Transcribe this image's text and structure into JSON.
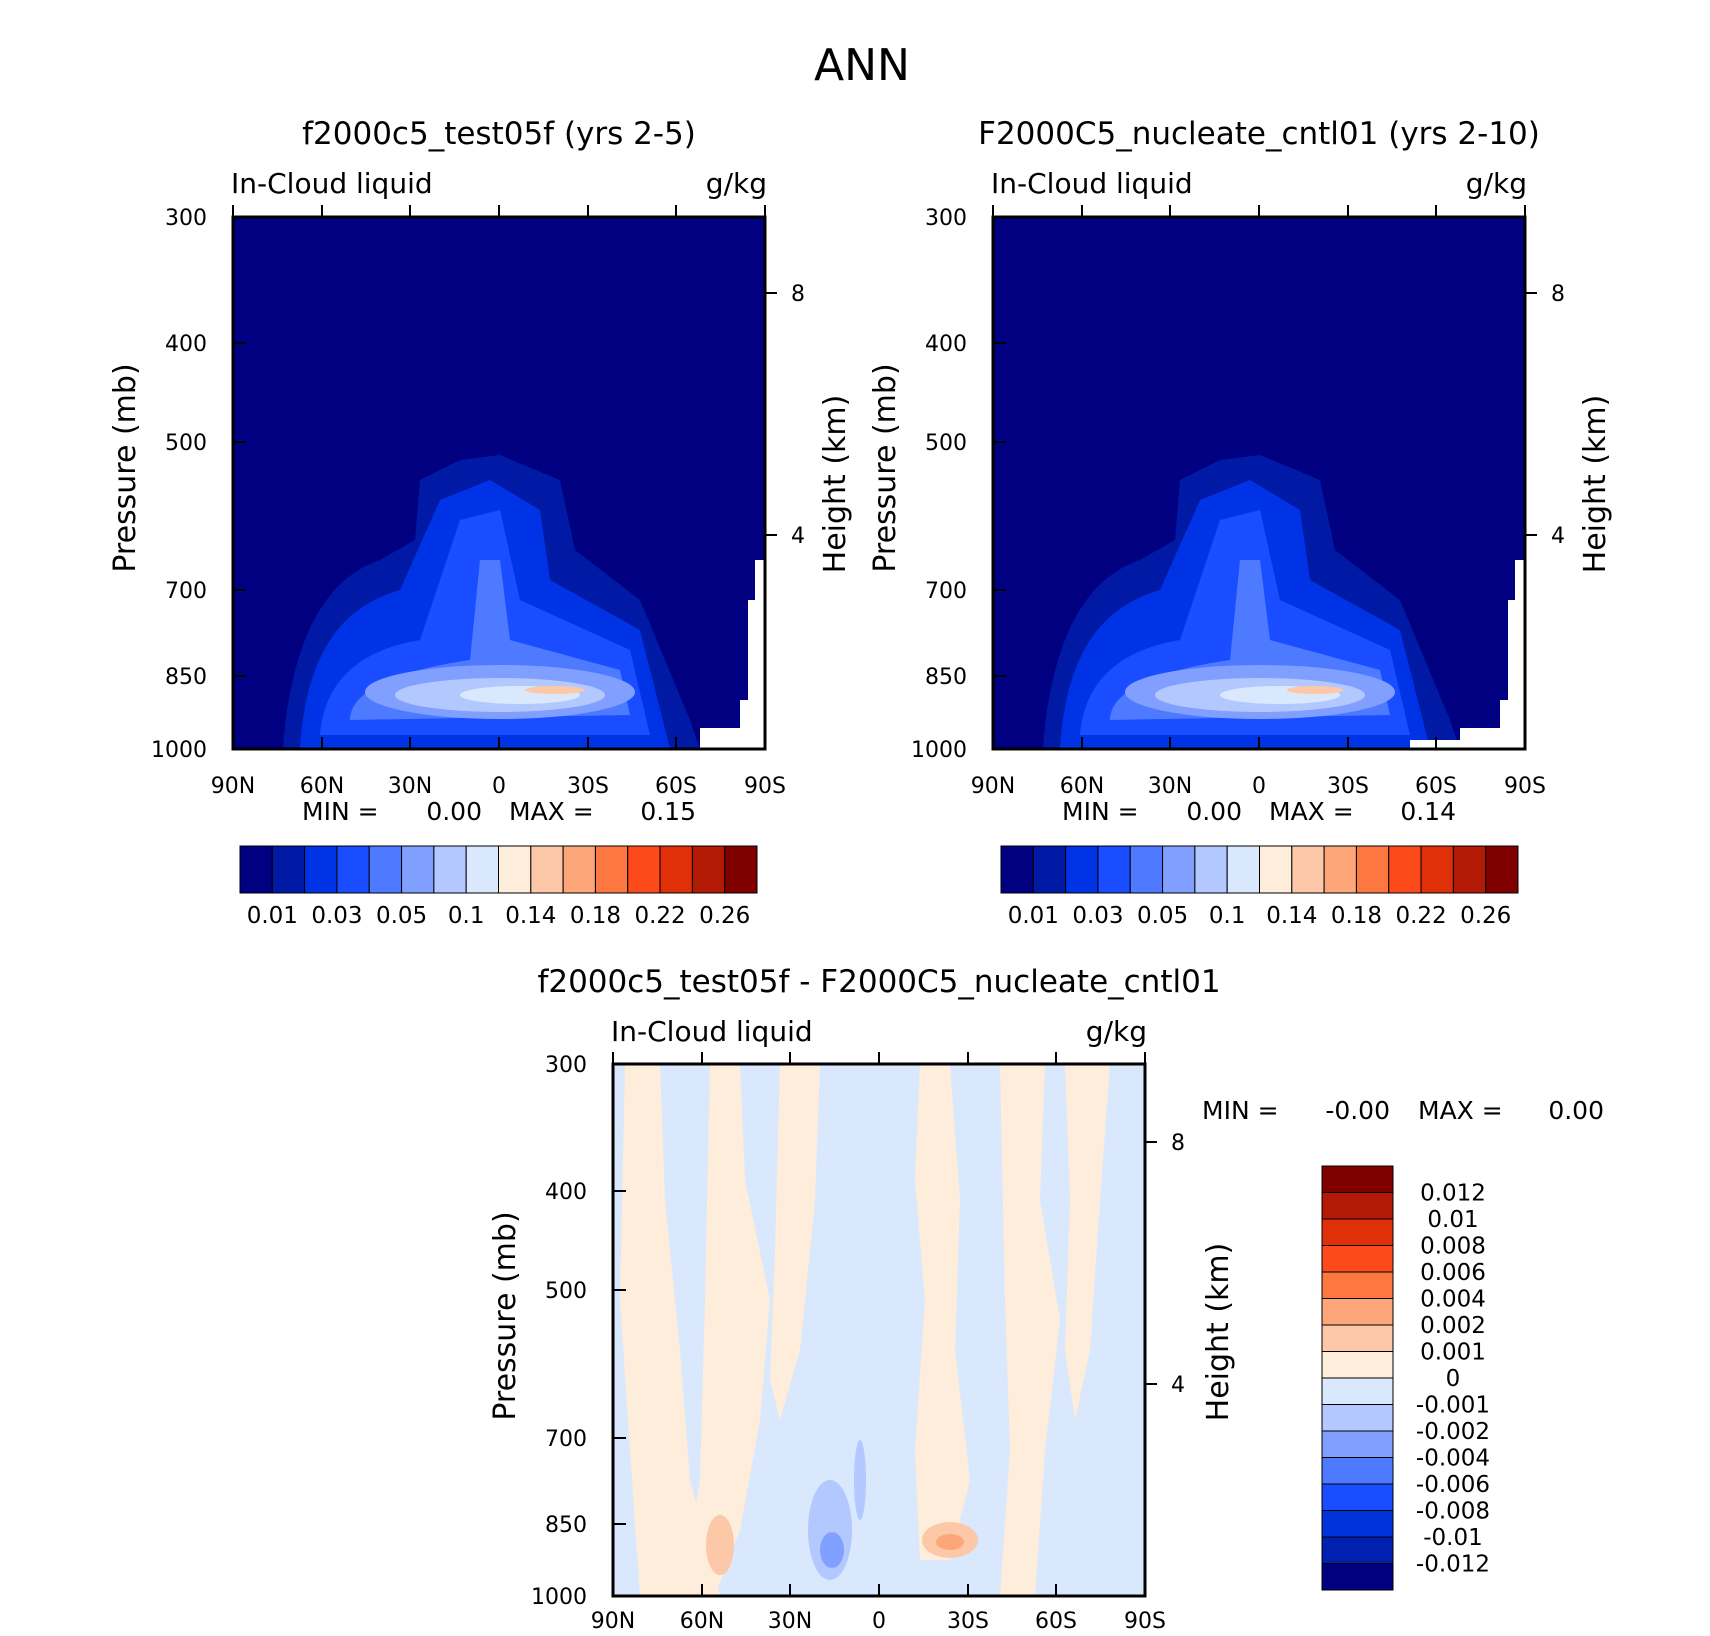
{
  "page_title": "ANN",
  "colors": {
    "abs_scale": [
      "#000080",
      "#001aa6",
      "#0033e6",
      "#1a4dff",
      "#4d7aff",
      "#809fff",
      "#b3c8ff",
      "#d9e8fc",
      "#ffeddb",
      "#fcc8a8",
      "#fca67a",
      "#fc7840",
      "#fc4a1a",
      "#e0300a",
      "#b31a05",
      "#800000"
    ],
    "diff_scale": [
      "#000080",
      "#0020b0",
      "#0033d9",
      "#1a4dff",
      "#4d7aff",
      "#809fff",
      "#b3c8ff",
      "#d9e8fc",
      "#ffeddb",
      "#fcc8a8",
      "#fca67a",
      "#fc7840",
      "#fc4a1a",
      "#e0300a",
      "#b31a05",
      "#800000"
    ]
  },
  "chart_data": [
    {
      "type": "heatmap",
      "title": "f2000c5_test05f (yrs 2-5)",
      "variable_label": "In-Cloud liquid",
      "units_label": "g/kg",
      "ylabel": "Pressure (mb)",
      "ylabel_right": "Height (km)",
      "x_ticks": [
        "90N",
        "60N",
        "30N",
        "0",
        "30S",
        "60S",
        "90S"
      ],
      "y_ticks": [
        "300",
        "400",
        "500",
        "700",
        "850",
        "1000"
      ],
      "y_right_ticks": [
        "8",
        "4"
      ],
      "ylim": [
        1000,
        300
      ],
      "min_label": "MIN =",
      "min_value": "0.00",
      "max_label": "MAX =",
      "max_value": "0.15",
      "colorbar_labels": [
        "0.01",
        "0.03",
        "0.05",
        "0.1",
        "0.14",
        "0.18",
        "0.22",
        "0.26"
      ]
    },
    {
      "type": "heatmap",
      "title": "F2000C5_nucleate_cntl01 (yrs 2-10)",
      "variable_label": "In-Cloud liquid",
      "units_label": "g/kg",
      "ylabel": "Pressure (mb)",
      "ylabel_right": "Height (km)",
      "x_ticks": [
        "90N",
        "60N",
        "30N",
        "0",
        "30S",
        "60S",
        "90S"
      ],
      "y_ticks": [
        "300",
        "400",
        "500",
        "700",
        "850",
        "1000"
      ],
      "y_right_ticks": [
        "8",
        "4"
      ],
      "ylim": [
        1000,
        300
      ],
      "min_label": "MIN =",
      "min_value": "0.00",
      "max_label": "MAX =",
      "max_value": "0.14",
      "colorbar_labels": [
        "0.01",
        "0.03",
        "0.05",
        "0.1",
        "0.14",
        "0.18",
        "0.22",
        "0.26"
      ]
    },
    {
      "type": "heatmap",
      "title": "f2000c5_test05f - F2000C5_nucleate_cntl01",
      "variable_label": "In-Cloud liquid",
      "units_label": "g/kg",
      "ylabel": "Pressure (mb)",
      "ylabel_right": "Height (km)",
      "x_ticks": [
        "90N",
        "60N",
        "30N",
        "0",
        "30S",
        "60S",
        "90S"
      ],
      "y_ticks": [
        "300",
        "400",
        "500",
        "700",
        "850",
        "1000"
      ],
      "y_right_ticks": [
        "8",
        "4"
      ],
      "ylim": [
        1000,
        300
      ],
      "min_label": "MIN =",
      "min_value": "-0.00",
      "max_label": "MAX =",
      "max_value": "0.00",
      "colorbar_labels": [
        "0.012",
        "0.01",
        "0.008",
        "0.006",
        "0.004",
        "0.002",
        "0.001",
        "0",
        "-0.001",
        "-0.002",
        "-0.004",
        "-0.006",
        "-0.008",
        "-0.01",
        "-0.012"
      ]
    }
  ]
}
